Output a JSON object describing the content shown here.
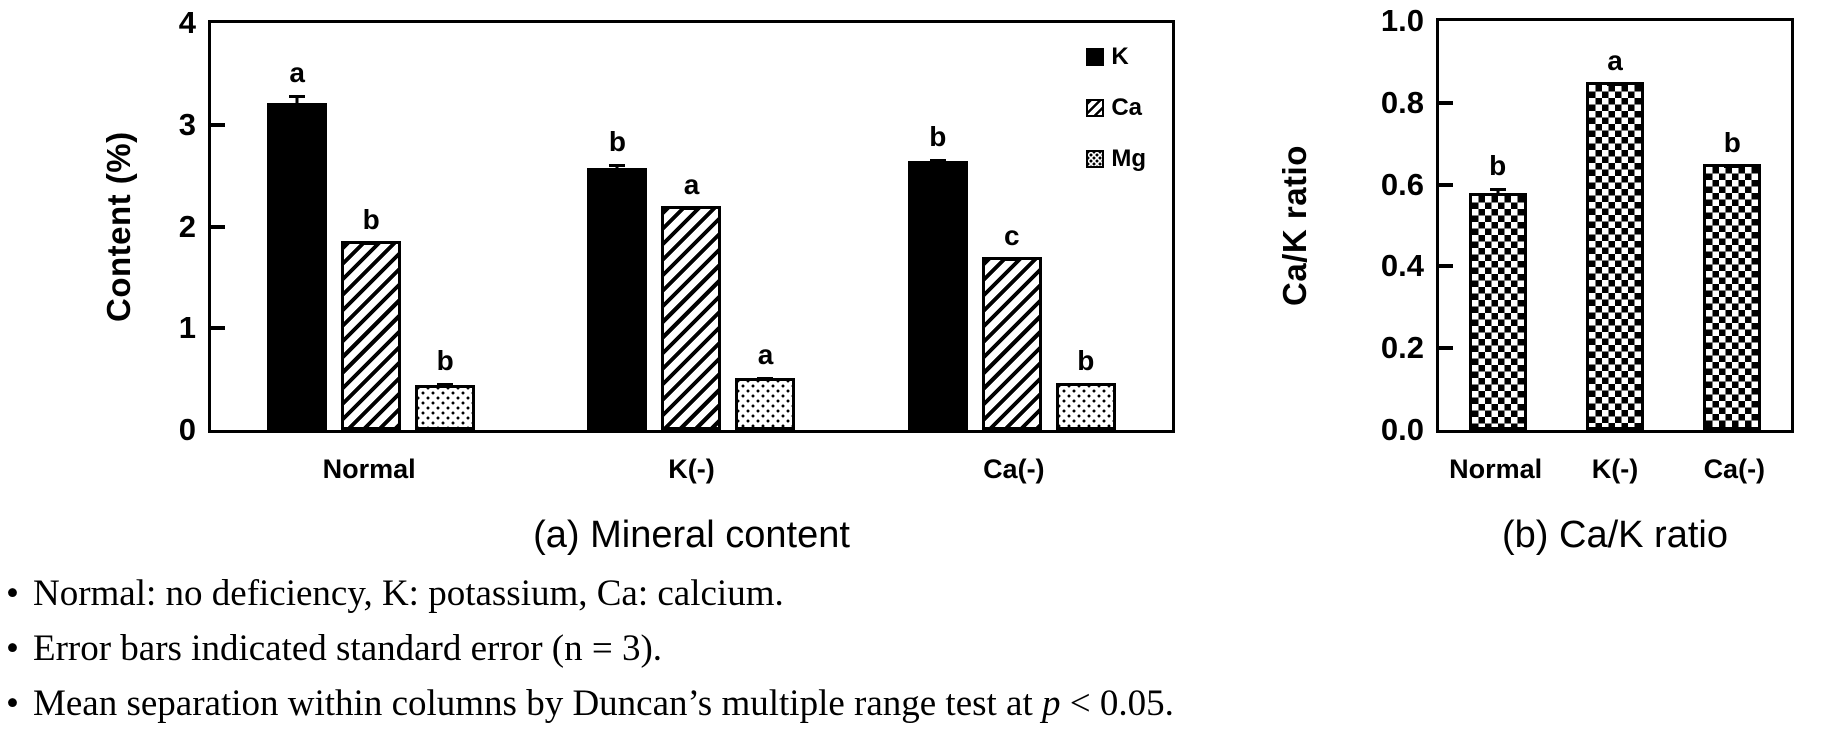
{
  "figure": {
    "background": "#ffffff",
    "text_color": "#000000"
  },
  "chart_data": [
    {
      "id": "mineral-content",
      "type": "bar",
      "title": "(a) Mineral content",
      "xlabel": "",
      "ylabel": "Content (%)",
      "ylim": [
        0,
        4
      ],
      "yticks": [
        0,
        1,
        2,
        3,
        4
      ],
      "ytick_labels": [
        "0",
        "1",
        "2",
        "3",
        "4"
      ],
      "grid": false,
      "legend_visible": true,
      "legend_position": "top-right-inside",
      "categories": [
        "Normal",
        "K(-)",
        "Ca(-)"
      ],
      "series": [
        {
          "name": "K",
          "pattern": "solid",
          "values": [
            3.21,
            2.58,
            2.64
          ],
          "errors": [
            0.08,
            0.03,
            0.02
          ],
          "letters": [
            "a",
            "b",
            "b"
          ]
        },
        {
          "name": "Ca",
          "pattern": "hatch",
          "values": [
            1.86,
            2.2,
            1.7
          ],
          "errors": [
            0.02,
            0.02,
            0.02
          ],
          "letters": [
            "b",
            "a",
            "c"
          ]
        },
        {
          "name": "Mg",
          "pattern": "dots",
          "values": [
            0.44,
            0.51,
            0.46
          ],
          "errors": [
            0.05,
            0.04,
            0.03
          ],
          "letters": [
            "b",
            "a",
            "b"
          ]
        }
      ]
    },
    {
      "id": "cak-ratio",
      "type": "bar",
      "title": "(b) Ca/K ratio",
      "xlabel": "",
      "ylabel": "Ca/K ratio",
      "ylim": [
        0,
        1.0
      ],
      "yticks": [
        0,
        0.2,
        0.4,
        0.6,
        0.8,
        1.0
      ],
      "ytick_labels": [
        "0.0",
        "0.2",
        "0.4",
        "0.6",
        "0.8",
        "1.0"
      ],
      "grid": false,
      "legend_visible": false,
      "categories": [
        "Normal",
        "K(-)",
        "Ca(-)"
      ],
      "series": [
        {
          "name": "Ca/K",
          "pattern": "checker",
          "values": [
            0.58,
            0.85,
            0.65
          ],
          "errors": [
            0.02,
            0.005,
            0.005
          ],
          "letters": [
            "b",
            "a",
            "b"
          ]
        }
      ]
    }
  ],
  "notes": {
    "bullet_glyph": "•",
    "items": [
      {
        "text": "Normal: no deficiency, K: potassium, Ca: calcium."
      },
      {
        "text": "Error bars indicated standard error (n = 3)."
      },
      {
        "text_pre": "Mean separation within columns by Duncan’s multiple range test at ",
        "italic_text": "p",
        "text_post": " < 0.05."
      }
    ]
  }
}
